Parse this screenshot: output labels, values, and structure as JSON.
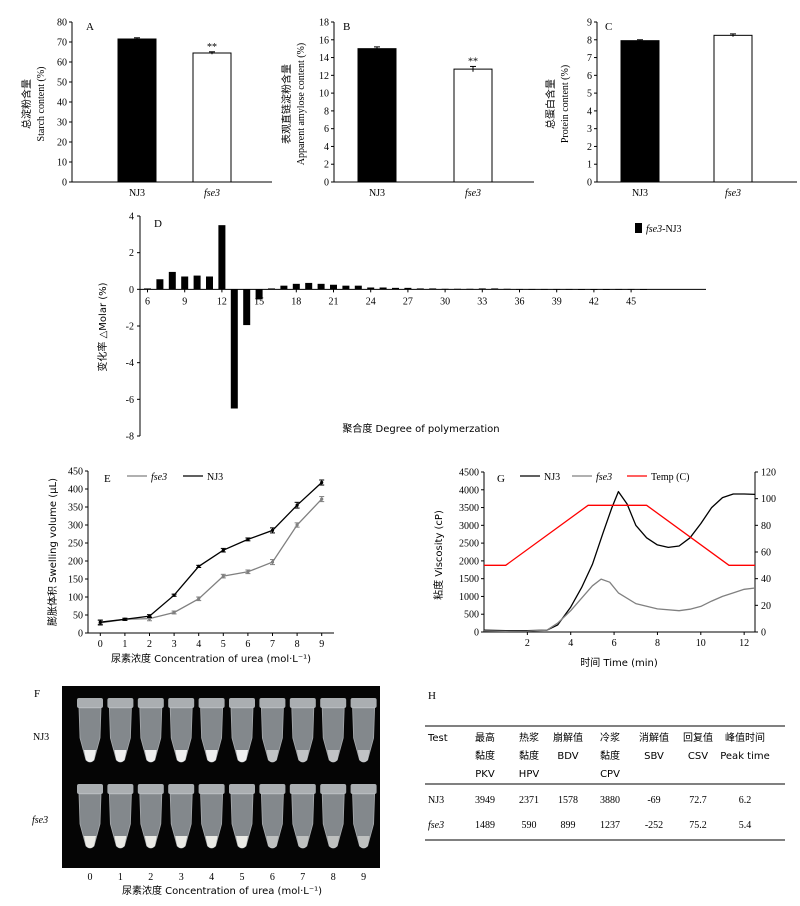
{
  "figure": {
    "panels": {
      "A": {
        "letter": "A",
        "ylabel_cn": "总淀粉含量",
        "ylabel_en": "Starch content (%)"
      },
      "B": {
        "letter": "B",
        "ylabel_cn": "表观直链淀粉含量",
        "ylabel_en": "Apparent amylose content (%)"
      },
      "C": {
        "letter": "C",
        "ylabel_cn": "总蛋白含量",
        "ylabel_en": "Protein content (%)"
      },
      "D": {
        "letter": "D",
        "ylabel": "变化率 △Molar (%)",
        "xlabel": "聚合度 Degree of polymerzation",
        "legend_series": "fse3",
        "legend_suffix": "-NJ3"
      },
      "E": {
        "letter": "E",
        "ylabel": "膨胀体积 Swelling volume (μL)",
        "xlabel": "尿素浓度 Concentration of urea (mol·L⁻¹)",
        "legend": [
          "fse3",
          "NJ3"
        ]
      },
      "F": {
        "letter": "F",
        "row_labels": [
          "NJ3",
          "fse3"
        ],
        "xlabel": "尿素浓度 Concentration of urea (mol·L⁻¹)",
        "concentrations": [
          "0",
          "1",
          "2",
          "3",
          "4",
          "5",
          "6",
          "7",
          "8",
          "9"
        ],
        "note": "photograph of 2 rows × 10 tubes"
      },
      "G": {
        "letter": "G",
        "ylabel": "粘度 Viscosity (cP)",
        "xlabel": "时间 Time (min)",
        "legend": [
          "NJ3",
          "fse3",
          "Temp (C)"
        ]
      },
      "H": {
        "letter": "H"
      }
    }
  },
  "table_h": {
    "headers": [
      [
        "Test",
        "",
        ""
      ],
      [
        "最高",
        "黏度",
        "PKV"
      ],
      [
        "热浆",
        "黏度",
        "HPV"
      ],
      [
        "崩解值",
        "BDV",
        ""
      ],
      [
        "冷浆",
        "黏度",
        "CPV"
      ],
      [
        "消解值",
        "SBV",
        ""
      ],
      [
        "回复值",
        "CSV",
        ""
      ],
      [
        "峰值时间",
        "Peak time",
        ""
      ]
    ],
    "rows": [
      {
        "test": "NJ3",
        "values": [
          "3949",
          "2371",
          "1578",
          "3880",
          "-69",
          "72.7",
          "6.2"
        ]
      },
      {
        "test": "fse3",
        "values": [
          "1489",
          "590",
          "899",
          "1237",
          "-252",
          "75.2",
          "5.4"
        ]
      }
    ]
  },
  "chart_data": [
    {
      "id": "A",
      "type": "bar",
      "categories": [
        "NJ3",
        "fse3"
      ],
      "values": [
        71.5,
        64.5
      ],
      "errors": [
        0.6,
        0.6
      ],
      "significance": [
        "",
        "**"
      ],
      "colors": [
        "#000000",
        "#ffffff"
      ],
      "ylabel": "Starch content (%)",
      "ylim": [
        0,
        80
      ],
      "yticks": [
        0,
        10,
        20,
        30,
        40,
        50,
        60,
        70,
        80
      ],
      "grid": false
    },
    {
      "id": "B",
      "type": "bar",
      "categories": [
        "NJ3",
        "fse3"
      ],
      "values": [
        15.0,
        12.7
      ],
      "errors": [
        0.2,
        0.3
      ],
      "significance": [
        "",
        "**"
      ],
      "colors": [
        "#000000",
        "#ffffff"
      ],
      "ylabel": "Apparent amylose content (%)",
      "ylim": [
        0,
        18
      ],
      "yticks": [
        0,
        2,
        4,
        6,
        8,
        10,
        12,
        14,
        16,
        18
      ],
      "grid": false
    },
    {
      "id": "C",
      "type": "bar",
      "categories": [
        "NJ3",
        "fse3"
      ],
      "values": [
        7.95,
        8.25
      ],
      "errors": [
        0.05,
        0.08
      ],
      "significance": [
        "",
        ""
      ],
      "colors": [
        "#000000",
        "#ffffff"
      ],
      "ylabel": "Protein content (%)",
      "ylim": [
        0,
        9
      ],
      "yticks": [
        0,
        1,
        2,
        3,
        4,
        5,
        6,
        7,
        8,
        9
      ],
      "grid": false
    },
    {
      "id": "D",
      "type": "bar",
      "x": [
        6,
        7,
        8,
        9,
        10,
        11,
        12,
        13,
        14,
        15,
        16,
        17,
        18,
        19,
        20,
        21,
        22,
        23,
        24,
        25,
        26,
        27,
        28,
        29,
        30,
        31,
        32,
        33,
        34,
        35,
        36,
        37,
        38,
        39,
        40,
        41,
        42,
        43,
        44,
        45,
        46
      ],
      "series": [
        {
          "name": "fse3-NJ3",
          "values": [
            0.05,
            0.55,
            0.95,
            0.7,
            0.75,
            0.7,
            3.5,
            -6.5,
            -1.95,
            -0.55,
            0.05,
            0.2,
            0.3,
            0.35,
            0.3,
            0.25,
            0.2,
            0.2,
            0.1,
            0.1,
            0.08,
            0.08,
            0.05,
            0.05,
            0.03,
            0.03,
            0.03,
            0.05,
            0.05,
            0.03,
            0.02,
            0.02,
            0.02,
            0.02,
            0.02,
            0.01,
            0.01,
            0.01,
            0.02,
            0.02,
            0.01
          ]
        }
      ],
      "xticks": [
        6,
        9,
        12,
        15,
        18,
        21,
        24,
        27,
        30,
        33,
        36,
        39,
        42,
        45
      ],
      "xlabel": "Degree of polymerzation",
      "ylabel": "△Molar (%)",
      "ylim": [
        -8,
        4
      ],
      "yticks": [
        -8,
        -6,
        -4,
        -2,
        0,
        2,
        4
      ],
      "legend": "top-right",
      "grid": false
    },
    {
      "id": "E",
      "type": "line",
      "x": [
        0,
        1,
        2,
        3,
        4,
        5,
        6,
        7,
        8,
        9
      ],
      "series": [
        {
          "name": "fse3",
          "color": "#808080",
          "values": [
            28,
            38,
            40,
            57,
            95,
            158,
            170,
            197,
            300,
            372
          ],
          "errors": [
            7,
            3,
            6,
            4,
            5,
            5,
            5,
            7,
            6,
            7
          ]
        },
        {
          "name": "NJ3",
          "color": "#000000",
          "values": [
            30,
            38,
            47,
            105,
            185,
            230,
            260,
            285,
            355,
            418
          ],
          "errors": [
            6,
            3,
            4,
            3,
            3,
            5,
            4,
            7,
            8,
            7
          ]
        }
      ],
      "xlabel": "Concentration of urea (mol·L⁻¹)",
      "ylabel": "Swelling volume (μL)",
      "ylim": [
        0,
        450
      ],
      "yticks": [
        0,
        50,
        100,
        150,
        200,
        250,
        300,
        350,
        400,
        450
      ],
      "xlim": [
        -0.5,
        9.5
      ],
      "legend": "top-left",
      "grid": false
    },
    {
      "id": "G",
      "type": "line",
      "series": [
        {
          "name": "NJ3",
          "color": "#000000",
          "axis": "left",
          "points": [
            [
              0,
              50
            ],
            [
              1,
              40
            ],
            [
              2,
              40
            ],
            [
              2.9,
              50
            ],
            [
              3.4,
              200
            ],
            [
              4,
              700
            ],
            [
              4.5,
              1250
            ],
            [
              5,
              1900
            ],
            [
              5.5,
              2800
            ],
            [
              5.9,
              3500
            ],
            [
              6.2,
              3949
            ],
            [
              6.6,
              3600
            ],
            [
              7,
              3000
            ],
            [
              7.5,
              2650
            ],
            [
              8,
              2450
            ],
            [
              8.5,
              2380
            ],
            [
              9,
              2420
            ],
            [
              9.5,
              2650
            ],
            [
              10,
              3050
            ],
            [
              10.5,
              3500
            ],
            [
              11,
              3780
            ],
            [
              11.5,
              3880
            ],
            [
              12,
              3880
            ],
            [
              12.5,
              3870
            ]
          ]
        },
        {
          "name": "fse3",
          "color": "#808080",
          "axis": "left",
          "points": [
            [
              0,
              30
            ],
            [
              1,
              20
            ],
            [
              2,
              25
            ],
            [
              2.9,
              50
            ],
            [
              3.4,
              250
            ],
            [
              4,
              600
            ],
            [
              4.5,
              950
            ],
            [
              5,
              1300
            ],
            [
              5.4,
              1489
            ],
            [
              5.8,
              1400
            ],
            [
              6.2,
              1100
            ],
            [
              7,
              800
            ],
            [
              8,
              650
            ],
            [
              9,
              600
            ],
            [
              9.5,
              640
            ],
            [
              10,
              720
            ],
            [
              10.5,
              870
            ],
            [
              11,
              1000
            ],
            [
              11.5,
              1100
            ],
            [
              12,
              1200
            ],
            [
              12.5,
              1237
            ]
          ]
        },
        {
          "name": "Temp (C)",
          "color": "#ff0000",
          "axis": "right",
          "points": [
            [
              0,
              50
            ],
            [
              1,
              50
            ],
            [
              4.8,
              95
            ],
            [
              7.5,
              95
            ],
            [
              11.3,
              50
            ],
            [
              12.5,
              50
            ]
          ]
        }
      ],
      "xlabel": "Time (min)",
      "ylabel": "Viscosity (cP)",
      "xlim": [
        0,
        12.5
      ],
      "xticks": [
        2,
        4,
        6,
        8,
        10,
        12
      ],
      "ylim": [
        0,
        4500
      ],
      "yticks": [
        0,
        500,
        1000,
        1500,
        2000,
        2500,
        3000,
        3500,
        4000,
        4500
      ],
      "y2lim": [
        0,
        120
      ],
      "y2ticks": [
        0,
        20,
        40,
        60,
        80,
        100,
        120
      ],
      "legend": "top",
      "grid": false
    }
  ]
}
